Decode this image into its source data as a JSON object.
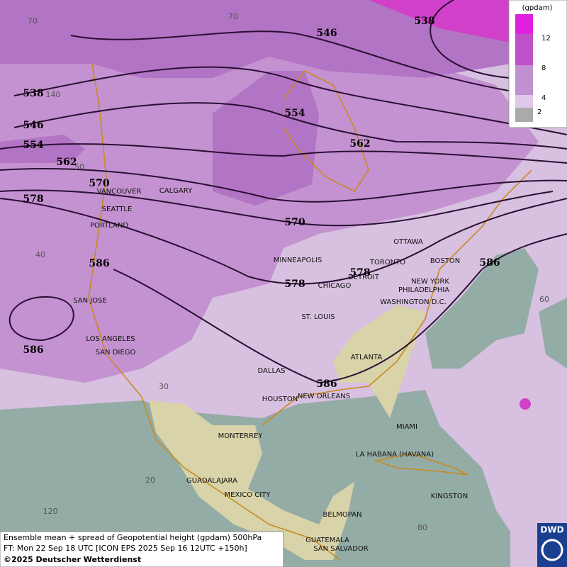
{
  "map": {
    "contour_labels": [
      546,
      538,
      538,
      546,
      554,
      554,
      562,
      562,
      570,
      570,
      578,
      578,
      578,
      586,
      586,
      586,
      586
    ],
    "cities": [
      "VANCOUVER",
      "CALGARY",
      "SEATTLE",
      "PORTLAND",
      "MINNEAPOLIS",
      "OTTAWA",
      "TORONTO",
      "BOSTON",
      "DETROIT",
      "CHICAGO",
      "NEW YORK",
      "PHILADELPHIA",
      "WASHINGTON D.C.",
      "SAN JOSE",
      "ST. LOUIS",
      "LOS ANGELES",
      "SAN DIEGO",
      "ATLANTA",
      "DALLAS",
      "HOUSTON",
      "NEW ORLEANS",
      "MIAMI",
      "MONTERREY",
      "LA HABANA (HAVANA)",
      "GUADALAJARA",
      "MEXICO CITY",
      "KINGSTON",
      "BELMOPAN",
      "GUATEMALA",
      "SAN SALVADOR"
    ],
    "grid_labels": [
      "70",
      "70",
      "140",
      "50",
      "40",
      "30",
      "20",
      "120",
      "80",
      "60"
    ]
  },
  "legend": {
    "title": "(gpdam)",
    "labels": [
      "12",
      "8",
      "4",
      "2"
    ]
  },
  "footer": {
    "lines": [
      "Ensemble mean + spread of Geopotential height (gpdam) 500hPa",
      "FT: Mon 22 Sep 18 UTC [ICON EPS 2025 Sep 16 12UTC +150h]",
      "©2025 Deutscher Wetterdienst"
    ]
  },
  "logo": "DWD"
}
